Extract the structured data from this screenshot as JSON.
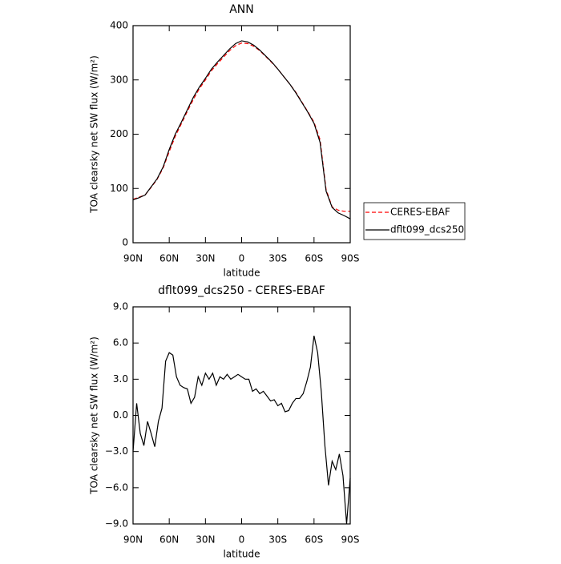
{
  "chart_data": [
    {
      "type": "line",
      "title": "ANN",
      "xlabel": "latitude",
      "ylabel": "TOA clearsky net SW flux (W/m²)",
      "x": [
        90,
        85,
        80,
        75,
        70,
        65,
        60,
        55,
        50,
        45,
        40,
        35,
        30,
        25,
        20,
        15,
        10,
        5,
        0,
        -5,
        -10,
        -15,
        -20,
        -25,
        -30,
        -35,
        -40,
        -45,
        -50,
        -55,
        -60,
        -65,
        -70,
        -75,
        -80,
        -85,
        -90
      ],
      "series": [
        {
          "name": "CERES-EBAF",
          "color": "#ff0000",
          "linestyle": "dashed",
          "values": [
            80,
            84,
            88,
            102,
            117,
            138,
            168,
            196,
            219,
            242,
            264,
            284,
            300,
            317,
            330,
            342,
            354,
            363,
            368,
            367,
            362,
            354,
            343,
            332,
            320,
            306,
            292,
            277,
            259,
            241,
            222,
            190,
            98,
            66,
            60,
            58,
            58
          ]
        },
        {
          "name": "dflt099_dcs250",
          "color": "#000000",
          "linestyle": "solid",
          "values": [
            79,
            83,
            88,
            103,
            118,
            140,
            172,
            200,
            222,
            245,
            268,
            287,
            303,
            320,
            333,
            345,
            357,
            367,
            372,
            370,
            364,
            355,
            344,
            333,
            320,
            306,
            292,
            276,
            258,
            240,
            220,
            185,
            95,
            65,
            55,
            50,
            44
          ]
        }
      ],
      "xlim": [
        90,
        -90
      ],
      "xticks": [
        {
          "value": 90,
          "label": "90N"
        },
        {
          "value": 60,
          "label": "60N"
        },
        {
          "value": 30,
          "label": "30N"
        },
        0,
        {
          "value": -30,
          "label": "30S"
        },
        {
          "value": -60,
          "label": "60S"
        },
        {
          "value": -90,
          "label": "90S"
        }
      ],
      "ylim": [
        0,
        400
      ],
      "yticks": [
        0,
        100,
        200,
        300,
        400
      ],
      "legend": "right"
    },
    {
      "type": "line",
      "title": "dflt099_dcs250 - CERES-EBAF",
      "xlabel": "latitude",
      "ylabel": "TOA clearsky net SW flux (W/m²)",
      "x": [
        90,
        87,
        84,
        81,
        78,
        75,
        72,
        69,
        66,
        63,
        60,
        57,
        54,
        51,
        48,
        45,
        42,
        39,
        36,
        33,
        30,
        27,
        24,
        21,
        18,
        15,
        12,
        9,
        6,
        3,
        0,
        -3,
        -6,
        -9,
        -12,
        -15,
        -18,
        -21,
        -24,
        -27,
        -30,
        -33,
        -36,
        -39,
        -42,
        -45,
        -48,
        -51,
        -54,
        -57,
        -60,
        -63,
        -66,
        -69,
        -72,
        -75,
        -78,
        -81,
        -84,
        -87,
        -90
      ],
      "series": [
        {
          "color": "#000000",
          "linestyle": "solid",
          "values": [
            -3.0,
            1.0,
            -1.5,
            -2.5,
            -0.5,
            -1.5,
            -2.6,
            -0.5,
            0.6,
            4.5,
            5.2,
            5.0,
            3.2,
            2.5,
            2.3,
            2.2,
            1.0,
            1.5,
            3.2,
            2.5,
            3.5,
            3.0,
            3.5,
            2.5,
            3.2,
            3.0,
            3.4,
            3.0,
            3.2,
            3.4,
            3.2,
            3.0,
            3.0,
            2.0,
            2.2,
            1.8,
            2.0,
            1.6,
            1.2,
            1.3,
            0.8,
            1.0,
            0.3,
            0.4,
            1.0,
            1.4,
            1.4,
            1.8,
            2.8,
            4.0,
            6.6,
            5.2,
            2.0,
            -2.5,
            -5.8,
            -3.8,
            -4.5,
            -3.2,
            -5.0,
            -9.0,
            -5.2
          ]
        }
      ],
      "xlim": [
        90,
        -90
      ],
      "xticks": [
        {
          "value": 90,
          "label": "90N"
        },
        {
          "value": 60,
          "label": "60N"
        },
        {
          "value": 30,
          "label": "30N"
        },
        0,
        {
          "value": -30,
          "label": "30S"
        },
        {
          "value": -60,
          "label": "60S"
        },
        {
          "value": -90,
          "label": "90S"
        }
      ],
      "ylim": [
        -9,
        9
      ],
      "yticks": [
        {
          "value": -9,
          "label": "−9.0"
        },
        {
          "value": -6,
          "label": "−6.0"
        },
        {
          "value": -3,
          "label": "−3.0"
        },
        {
          "value": 0,
          "label": "0.0"
        },
        {
          "value": 3,
          "label": "3.0"
        },
        {
          "value": 6,
          "label": "6.0"
        },
        {
          "value": 9,
          "label": "9.0"
        }
      ]
    }
  ]
}
